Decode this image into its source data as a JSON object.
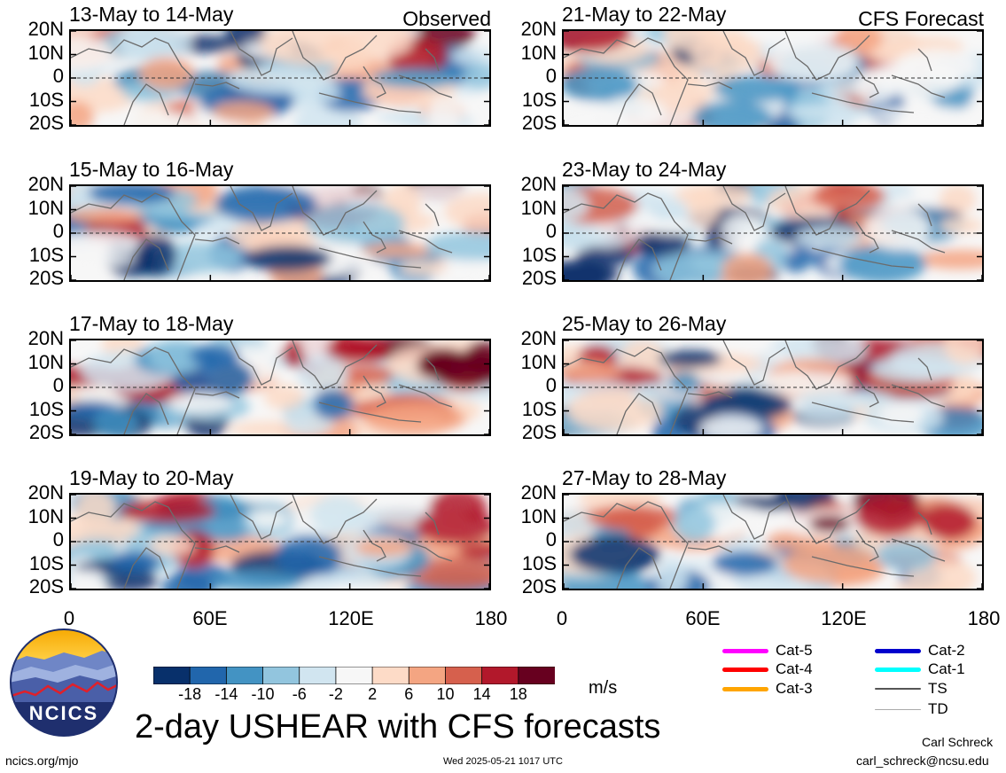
{
  "chart_data": {
    "type": "heatmap",
    "title": "2-day USHEAR with CFS forecasts",
    "variable": "USHEAR",
    "units": "m/s",
    "xlim": [
      0,
      180
    ],
    "ylim": [
      -20,
      20
    ],
    "x_ticks": [
      "0",
      "60E",
      "120E",
      "180"
    ],
    "y_ticks": [
      "20N",
      "10N",
      "0",
      "10S",
      "20S"
    ],
    "colorbar": {
      "ticks": [
        "-18",
        "-14",
        "-10",
        "-6",
        "-2",
        "2",
        "6",
        "10",
        "14",
        "18"
      ],
      "colors": [
        "#08306b",
        "#2166ac",
        "#4393c3",
        "#92c5de",
        "#d1e5f0",
        "#f7f7f7",
        "#fddbc7",
        "#f4a582",
        "#d6604d",
        "#b2182b",
        "#67001f"
      ]
    },
    "panels": [
      {
        "title": "13-May to 14-May",
        "label": "Observed",
        "column": "left"
      },
      {
        "title": "15-May to 16-May",
        "label": "",
        "column": "left"
      },
      {
        "title": "17-May to 18-May",
        "label": "",
        "column": "left"
      },
      {
        "title": "19-May to 20-May",
        "label": "",
        "column": "left"
      },
      {
        "title": "21-May to 22-May",
        "label": "CFS Forecast",
        "column": "right"
      },
      {
        "title": "23-May to 24-May",
        "label": "",
        "column": "right"
      },
      {
        "title": "25-May to 26-May",
        "label": "",
        "column": "right"
      },
      {
        "title": "27-May to 28-May",
        "label": "",
        "column": "right"
      }
    ],
    "legend": [
      {
        "name": "Cat-5",
        "color": "#ff00ff"
      },
      {
        "name": "Cat-4",
        "color": "#ff0000"
      },
      {
        "name": "Cat-3",
        "color": "#ffa500"
      },
      {
        "name": "Cat-2",
        "color": "#0000cd"
      },
      {
        "name": "Cat-1",
        "color": "#00ffff"
      },
      {
        "name": "TS",
        "color": "#555555"
      },
      {
        "name": "TD",
        "color": "#aaaaaa"
      }
    ]
  },
  "logo_text": "NCICS",
  "footer": {
    "url": "ncics.org/mjo",
    "timestamp": "Wed 2025-05-21 1017 UTC",
    "author": "Carl Schreck",
    "email": "carl_schreck@ncsu.edu"
  }
}
